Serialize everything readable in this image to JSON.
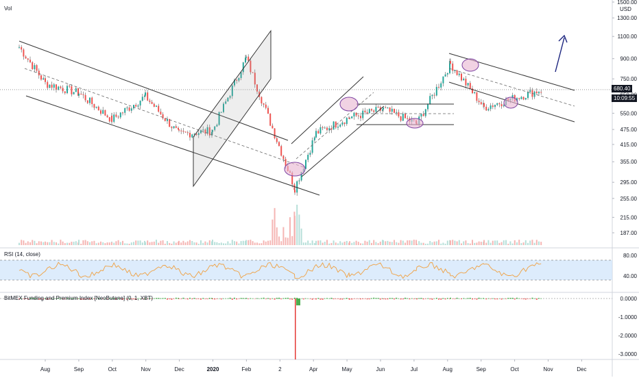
{
  "header": {
    "top_left_label": "Vol"
  },
  "price_axis": {
    "currency": "USD",
    "ticks": [
      "1500.00",
      "1300.00",
      "1100.00",
      "900.00",
      "750.00",
      "650.00",
      "550.00",
      "475.00",
      "415.00",
      "355.00",
      "295.00",
      "255.00",
      "215.00",
      "187.00"
    ],
    "last_price": "680.40",
    "countdown": "10:09:55"
  },
  "time_axis": {
    "labels": [
      "Aug",
      "Sep",
      "Oct",
      "Nov",
      "Dec",
      "2020",
      "Feb",
      "2",
      "Apr",
      "May",
      "Jun",
      "Jul",
      "Aug",
      "Sep",
      "Oct",
      "Nov",
      "Dec"
    ]
  },
  "rsi_pane": {
    "label": "RSI (14, close)",
    "ticks": [
      "80.00",
      "40.00"
    ]
  },
  "funding_pane": {
    "label": "BitMEX Funding and Premium Index [NeoButane] (0, 1, XBT)",
    "ticks": [
      "0.0000",
      "-1.0000",
      "-2.0000",
      "-3.0000"
    ]
  },
  "colors": {
    "up": "#26a69a",
    "down": "#ef5350",
    "rsi_line": "#f0a040",
    "rsi_band": "#cfe4fb",
    "ellipse": "#e8b4d0",
    "arrow": "#1a237e",
    "wick": "#131722"
  },
  "chart_data": {
    "type": "candlestick",
    "title": "",
    "x_labels": [
      "Aug",
      "Sep",
      "Oct",
      "Nov",
      "Dec",
      "2020",
      "Feb",
      "2",
      "Apr",
      "May",
      "Jun",
      "Jul",
      "Aug",
      "Sep",
      "Oct",
      "Nov",
      "Dec"
    ],
    "y_scale": "log",
    "price_anchors": [
      {
        "month": "Jul",
        "price": 1000
      },
      {
        "month": "Aug",
        "price": 720
      },
      {
        "month": "Sep",
        "price": 660
      },
      {
        "month": "Oct",
        "price": 520
      },
      {
        "month": "Nov",
        "price": 640
      },
      {
        "month": "Dec",
        "price": 455
      },
      {
        "month": "2020",
        "price": 470
      },
      {
        "month": "Feb",
        "price": 905
      },
      {
        "month": "2",
        "price": 280
      },
      {
        "month": "Apr",
        "price": 460
      },
      {
        "month": "May",
        "price": 530
      },
      {
        "month": "Jun",
        "price": 570
      },
      {
        "month": "Jul",
        "price": 500
      },
      {
        "month": "Aug",
        "price": 860
      },
      {
        "month": "Sep",
        "price": 580
      },
      {
        "month": "Oct",
        "price": 680
      }
    ],
    "last_price": 680.4,
    "rsi": {
      "upper": 70,
      "lower": 30
    },
    "funding_min": -3.0
  }
}
